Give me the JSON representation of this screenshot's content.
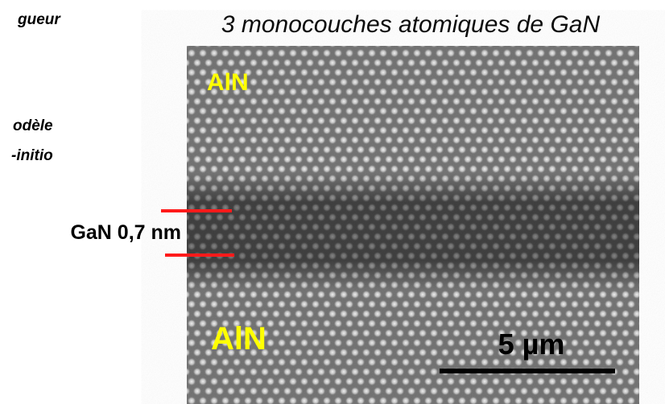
{
  "left_text": [
    "gueur",
    "odèle",
    "-initio"
  ],
  "title": "3 monocouches atomiques de GaN",
  "image": {
    "labels": [
      "AlN",
      "AlN"
    ],
    "layer_label": "GaN 0,7 nm",
    "scale_bar": "5 µm"
  }
}
